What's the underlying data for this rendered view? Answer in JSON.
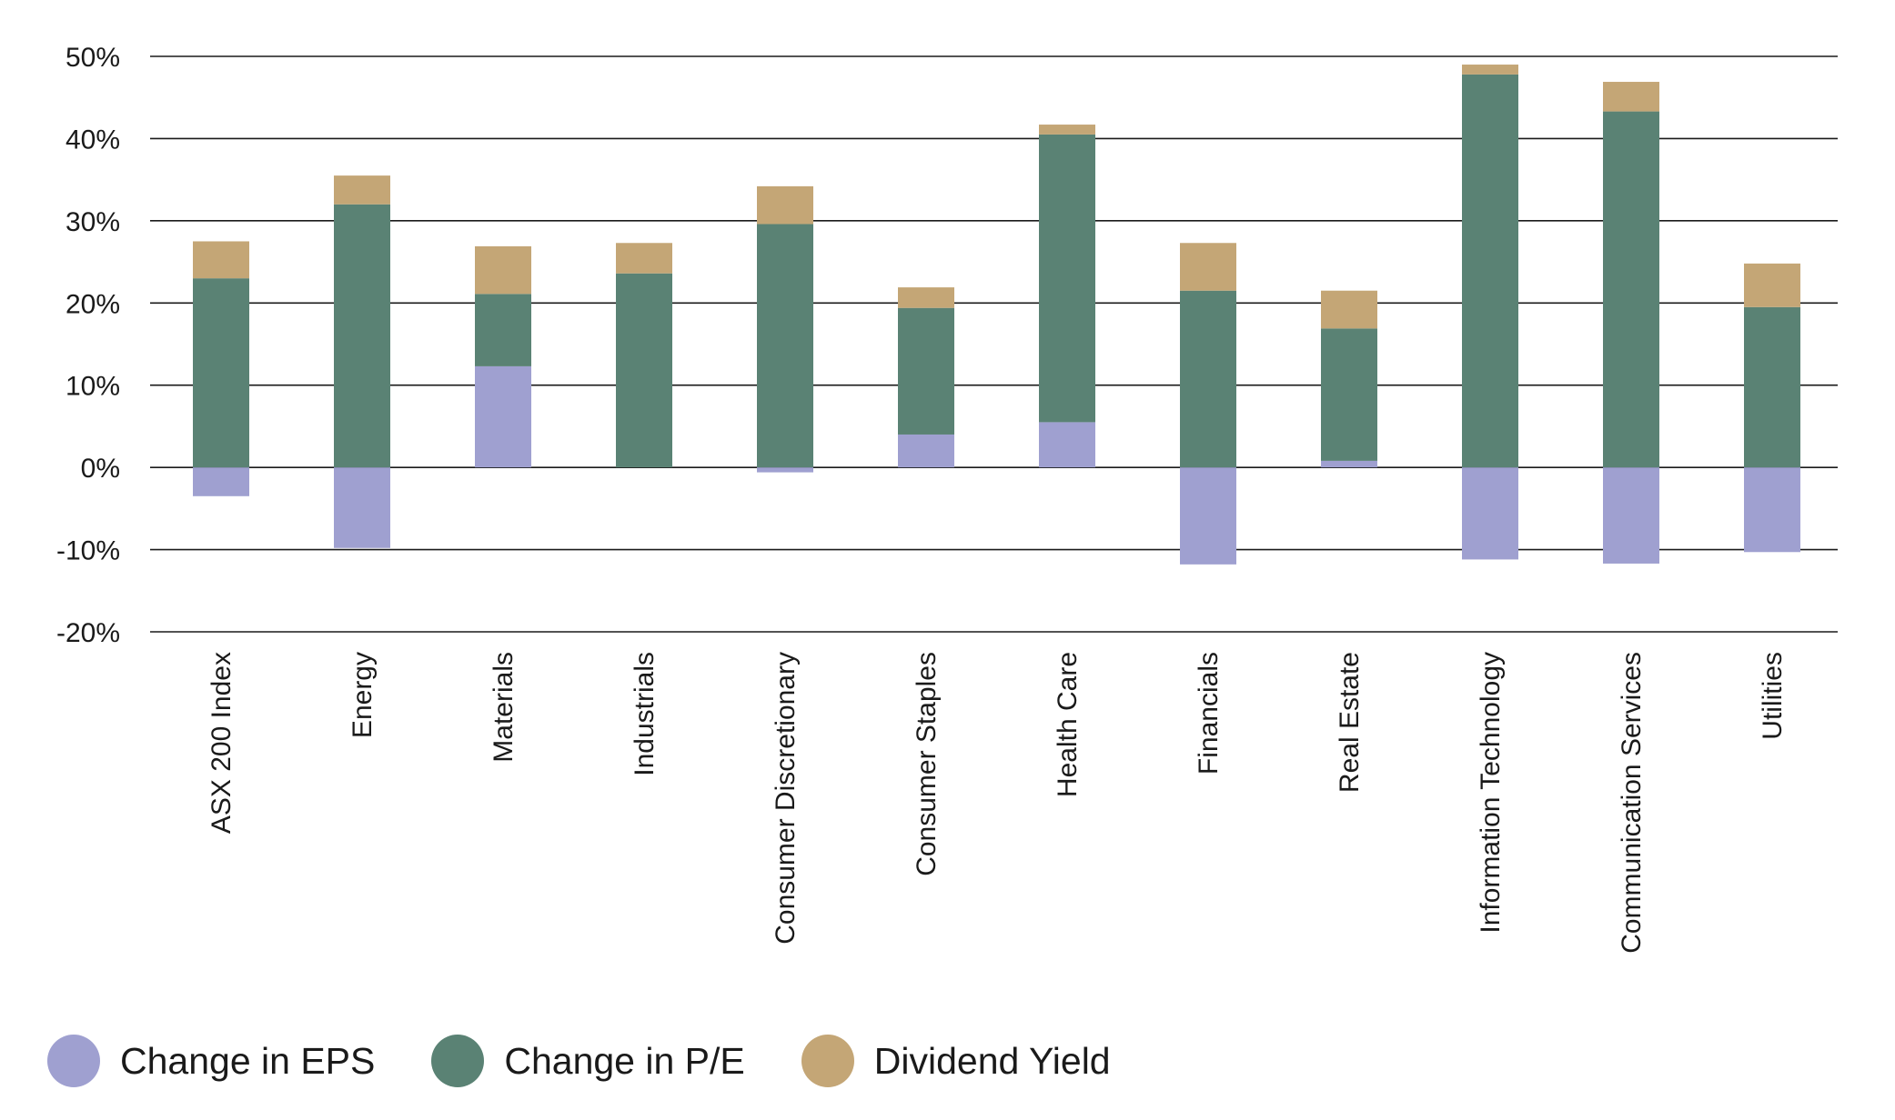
{
  "chart_data": {
    "type": "bar",
    "stacked": true,
    "categories": [
      "ASX 200 Index",
      "Energy",
      "Materials",
      "Industrials",
      "Consumer Discretionary",
      "Consumer Staples",
      "Health Care",
      "Financials",
      "Real Estate",
      "Information Technology",
      "Communication Services",
      "Utilities"
    ],
    "series": [
      {
        "name": "Change in EPS",
        "color": "#9fa0d0",
        "values": [
          -3.5,
          -9.8,
          12.3,
          0.0,
          -0.6,
          4.0,
          5.5,
          -11.8,
          0.8,
          -11.2,
          -11.7,
          -10.3
        ]
      },
      {
        "name": "Change in P/E",
        "color": "#5a8274",
        "values": [
          23.0,
          32.0,
          8.8,
          23.6,
          29.6,
          15.4,
          35.0,
          21.5,
          16.1,
          47.8,
          43.3,
          19.5
        ]
      },
      {
        "name": "Dividend Yield",
        "color": "#c4a676",
        "values": [
          4.5,
          3.5,
          5.8,
          3.7,
          4.6,
          2.5,
          1.2,
          5.8,
          4.6,
          1.2,
          3.6,
          5.3
        ]
      }
    ],
    "title": "",
    "xlabel": "",
    "ylabel": "",
    "ylim": [
      -20,
      50
    ],
    "yticks": [
      -20,
      -10,
      0,
      10,
      20,
      30,
      40,
      50
    ],
    "ytick_labels": [
      "-20%",
      "-10%",
      "0%",
      "10%",
      "20%",
      "30%",
      "40%",
      "50%"
    ],
    "grid": true,
    "legend_position": "bottom-left"
  }
}
